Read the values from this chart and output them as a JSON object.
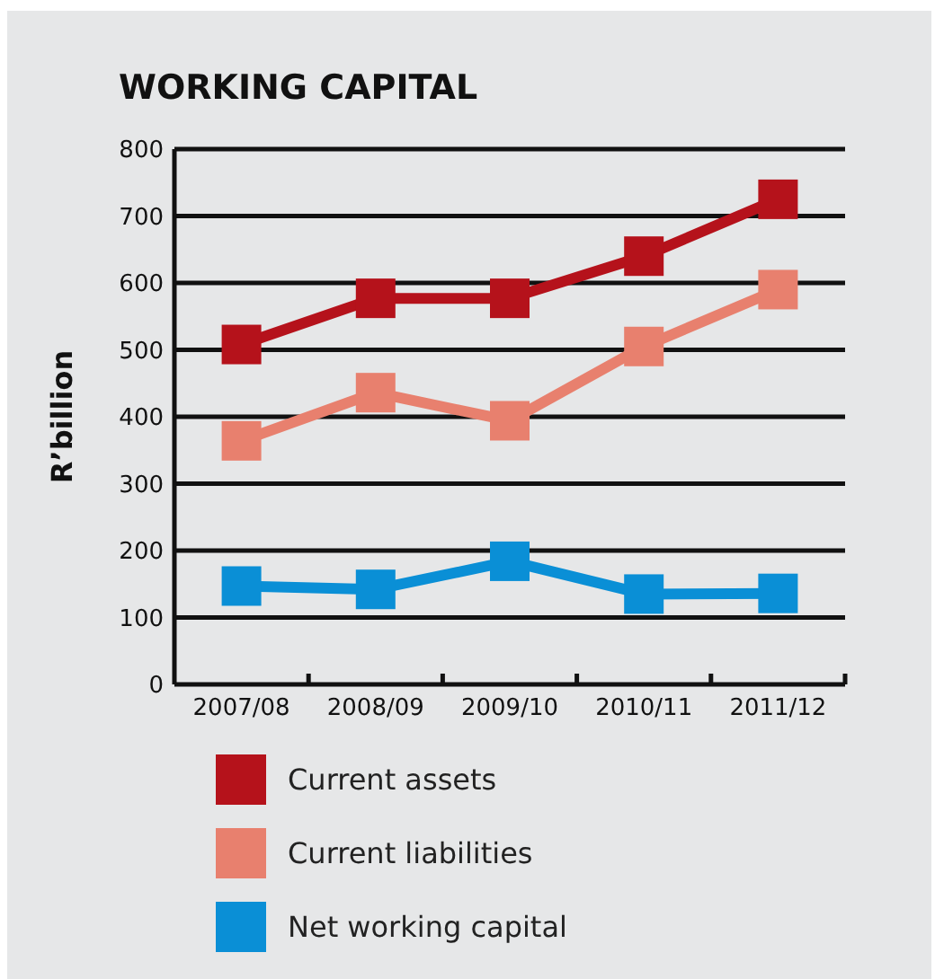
{
  "chart_data": {
    "type": "line",
    "title": "WORKING CAPITAL",
    "ylabel": "R’billion",
    "categories": [
      "2007/08",
      "2008/09",
      "2009/10",
      "2010/11",
      "2011/12"
    ],
    "series": [
      {
        "name": "Current assets",
        "color": "#b5121b",
        "values": [
          508,
          577,
          577,
          640,
          725
        ]
      },
      {
        "name": "Current liabilities",
        "color": "#e8806e",
        "values": [
          364,
          436,
          394,
          505,
          590
        ]
      },
      {
        "name": "Net working capital",
        "color": "#0a8fd6",
        "values": [
          147,
          142,
          184,
          135,
          136
        ]
      }
    ],
    "ylim": [
      0,
      800
    ],
    "yticks": [
      0,
      100,
      200,
      300,
      400,
      500,
      600,
      700,
      800
    ],
    "grid": "y",
    "legend": "bottom",
    "marker": "square",
    "line_style": "solid"
  }
}
